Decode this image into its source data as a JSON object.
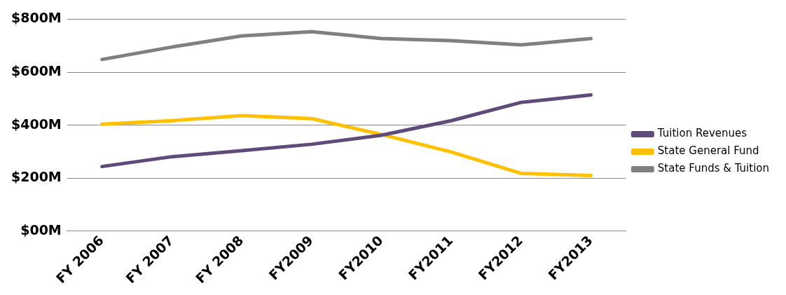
{
  "chart_data": {
    "type": "line",
    "categories": [
      "FY 2006",
      "FY 2007",
      "FY 2008",
      "FY2009",
      "FY2010",
      "FY2011",
      "FY2012",
      "FY2013"
    ],
    "series": [
      {
        "name": "Tuition Revenues",
        "color": "#5f4b7b",
        "values": [
          244,
          281,
          304,
          328,
          362,
          417,
          486,
          514
        ]
      },
      {
        "name": "State General Fund",
        "color": "#ffc000",
        "values": [
          404,
          417,
          436,
          425,
          365,
          299,
          218,
          210
        ]
      },
      {
        "name": "State Funds & Tuition",
        "color": "#808080",
        "values": [
          648,
          695,
          737,
          753,
          727,
          719,
          703,
          727
        ]
      }
    ],
    "ylim": [
      0,
      800
    ],
    "yticks": [
      {
        "value": 0,
        "label": "$00M"
      },
      {
        "value": 200,
        "label": "$200M"
      },
      {
        "value": 400,
        "label": "$400M"
      },
      {
        "value": 600,
        "label": "$600M"
      },
      {
        "value": 800,
        "label": "$800M"
      }
    ],
    "grid": "y",
    "legend": "right",
    "marker": "none",
    "line_style": "solid"
  }
}
